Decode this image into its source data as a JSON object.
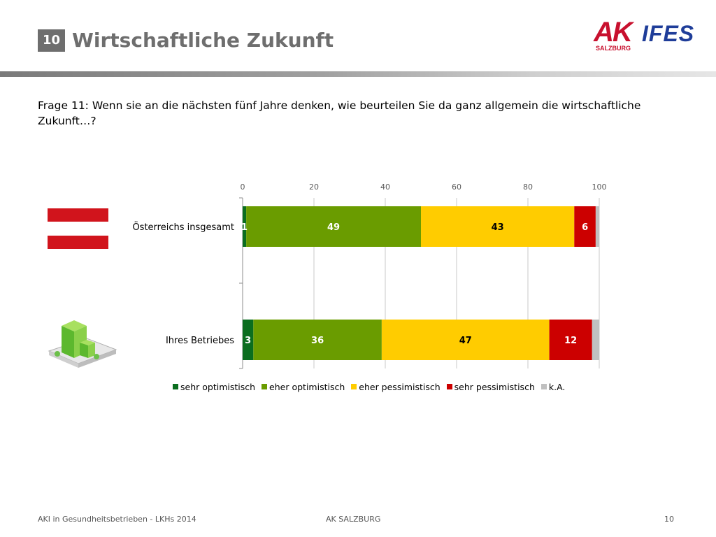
{
  "header": {
    "slide_number": "10",
    "title": "Wirtschaftliche Zukunft",
    "logo_ak": "AK",
    "logo_ak_sub": "SALZBURG",
    "logo_ifes": "IFES"
  },
  "question": "Frage 11: Wenn sie an die nächsten fünf Jahre denken, wie beurteilen Sie da ganz allgemein die wirtschaftliche Zukunft…?",
  "colors": {
    "sehr_optimistisch": "#0b6e1f",
    "eher_optimistisch": "#6a9c00",
    "eher_pessimistisch": "#ffcc00",
    "sehr_pessimistisch": "#cc0000",
    "ka": "#c0c0c0"
  },
  "chart_data": {
    "type": "bar",
    "orientation": "horizontal",
    "stacked": true,
    "categories": [
      "Österreichs insgesamt",
      "Ihres Betriebes"
    ],
    "xlim": [
      0,
      100
    ],
    "x_ticks": [
      0,
      20,
      40,
      60,
      80,
      100
    ],
    "grid": true,
    "legend_position": "bottom",
    "series": [
      {
        "name": "sehr optimistisch",
        "values": [
          1,
          3
        ],
        "color": "#0b6e1f",
        "labels": [
          "1",
          "3"
        ]
      },
      {
        "name": "eher optimistisch",
        "values": [
          49,
          36
        ],
        "color": "#6a9c00",
        "labels": [
          "49",
          "36"
        ]
      },
      {
        "name": "eher pessimistisch",
        "values": [
          43,
          47
        ],
        "color": "#ffcc00",
        "labels": [
          "43",
          "47"
        ]
      },
      {
        "name": "sehr pessimistisch",
        "values": [
          6,
          12
        ],
        "color": "#cc0000",
        "labels": [
          "6",
          "12"
        ]
      },
      {
        "name": "k.A.",
        "values": [
          1,
          2
        ],
        "color": "#c0c0c0",
        "labels": [
          "",
          ""
        ]
      }
    ]
  },
  "footer": {
    "left": "AKI in Gesundheitsbetrieben - LKHs 2014",
    "center": "AK SALZBURG",
    "page": "10"
  }
}
